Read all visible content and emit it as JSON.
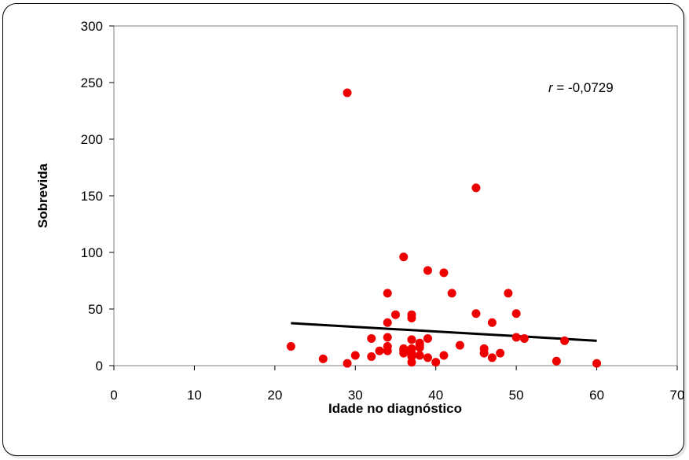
{
  "chart_data": {
    "type": "scatter",
    "xlabel": "Idade no diagnóstico",
    "ylabel": "Sobrevida",
    "xlim": [
      0,
      70
    ],
    "ylim": [
      0,
      300
    ],
    "x_ticks": [
      "0",
      "10",
      "20",
      "30",
      "40",
      "50",
      "60",
      "70"
    ],
    "y_ticks": [
      "0",
      "50",
      "100",
      "150",
      "200",
      "250",
      "300"
    ],
    "grid": false,
    "legend": "none",
    "annotation": {
      "symbol": "r",
      "text": " = -0,0729"
    },
    "point_color": "#ee0000",
    "trendline": {
      "x": [
        22,
        60
      ],
      "y": [
        37.5,
        22
      ],
      "color": "#000000"
    },
    "series": [
      {
        "x": [
          22,
          26,
          29,
          29,
          30,
          32,
          32,
          33,
          34,
          34,
          34,
          34,
          34,
          35,
          36,
          36,
          36,
          36,
          37,
          37,
          37,
          37,
          37,
          37,
          37,
          38,
          38,
          38,
          38,
          39,
          39,
          39,
          40,
          41,
          41,
          42,
          43,
          45,
          45,
          46,
          46,
          47,
          47,
          48,
          49,
          50,
          50,
          51,
          55,
          56,
          60
        ],
        "y": [
          17,
          6,
          241,
          2,
          9,
          24,
          8,
          13,
          64,
          38,
          25,
          17,
          13,
          45,
          96,
          15,
          13,
          11,
          45,
          42,
          23,
          15,
          11,
          8,
          3,
          20,
          18,
          16,
          9,
          84,
          24,
          7,
          3,
          82,
          9,
          64,
          18,
          157,
          46,
          15,
          11,
          38,
          7,
          11,
          64,
          46,
          25,
          24,
          4,
          22,
          2
        ]
      }
    ]
  }
}
